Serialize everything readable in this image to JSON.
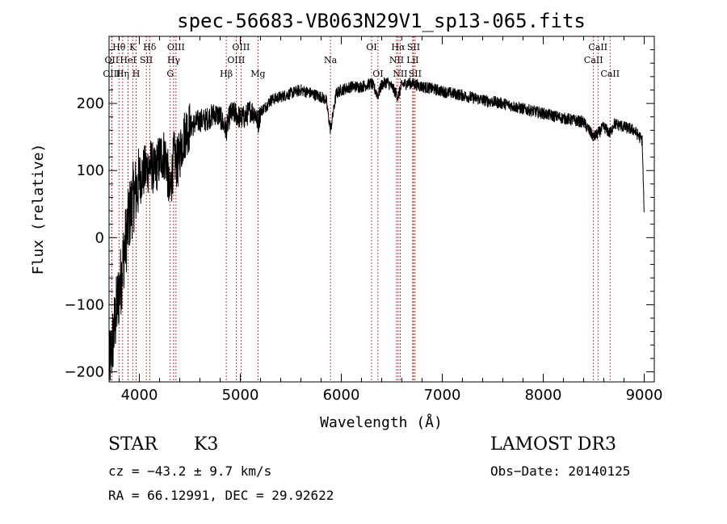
{
  "chart_data": {
    "type": "line",
    "title": "spec-56683-VB063N29V1_sp13-065.fits",
    "xlabel": "Wavelength (Å)",
    "ylabel": "Flux (relative)",
    "xlim": [
      3700,
      9100
    ],
    "ylim": [
      -215,
      300
    ],
    "x_ticks": [
      4000,
      5000,
      6000,
      7000,
      8000,
      9000
    ],
    "y_ticks": [
      -200,
      -100,
      0,
      100,
      200
    ],
    "x_tick_labels": [
      "4000",
      "5000",
      "6000",
      "7000",
      "8000",
      "9000"
    ],
    "y_tick_labels": [
      "−200",
      "−100",
      "0",
      "100",
      "200"
    ],
    "grid": false,
    "series": [
      {
        "name": "flux",
        "x": [
          3700,
          3740,
          3780,
          3820,
          3850,
          3880,
          3910,
          3940,
          3970,
          4000,
          4030,
          4060,
          4090,
          4120,
          4150,
          4180,
          4210,
          4240,
          4270,
          4300,
          4340,
          4380,
          4420,
          4460,
          4500,
          4550,
          4600,
          4650,
          4700,
          4750,
          4800,
          4860,
          4900,
          4950,
          5000,
          5050,
          5100,
          5150,
          5175,
          5200,
          5250,
          5300,
          5400,
          5500,
          5600,
          5700,
          5800,
          5850,
          5893,
          5950,
          6000,
          6100,
          6200,
          6300,
          6363,
          6400,
          6450,
          6500,
          6563,
          6600,
          6650,
          6700,
          6800,
          6900,
          7000,
          7200,
          7400,
          7600,
          7800,
          8000,
          8200,
          8400,
          8498,
          8542,
          8600,
          8662,
          8700,
          8800,
          8900,
          8980,
          9000
        ],
        "values": [
          -200,
          -150,
          -100,
          -60,
          -20,
          10,
          40,
          60,
          70,
          85,
          95,
          100,
          105,
          110,
          95,
          110,
          120,
          125,
          115,
          60,
          120,
          110,
          140,
          160,
          165,
          170,
          175,
          175,
          180,
          185,
          180,
          160,
          185,
          185,
          178,
          180,
          190,
          185,
          170,
          188,
          195,
          205,
          210,
          215,
          220,
          215,
          210,
          205,
          160,
          215,
          220,
          225,
          225,
          230,
          212,
          228,
          232,
          225,
          210,
          228,
          230,
          230,
          225,
          222,
          218,
          212,
          205,
          200,
          192,
          185,
          178,
          172,
          150,
          155,
          165,
          155,
          170,
          165,
          160,
          145,
          30
        ]
      }
    ],
    "lines": [
      {
        "label": "Hθ",
        "x": 3798,
        "row": 1
      },
      {
        "label": "OII",
        "x": 3727,
        "row": 2
      },
      {
        "label": "OIII",
        "x": 3727,
        "row": 3
      },
      {
        "label": "K",
        "x": 3934,
        "row": 1
      },
      {
        "label": "HeI",
        "x": 3889,
        "row": 2
      },
      {
        "label": "Hη",
        "x": 3835,
        "row": 3
      },
      {
        "label": "H",
        "x": 3968,
        "row": 3
      },
      {
        "label": "Hδ",
        "x": 4102,
        "row": 1
      },
      {
        "label": "SII",
        "x": 4069,
        "row": 2
      },
      {
        "label": "OIII",
        "x": 4363,
        "row": 1
      },
      {
        "label": "Hγ",
        "x": 4340,
        "row": 2
      },
      {
        "label": "G",
        "x": 4306,
        "row": 3
      },
      {
        "label": "Hβ",
        "x": 4861,
        "row": 3
      },
      {
        "label": "OIII",
        "x": 5007,
        "row": 1
      },
      {
        "label": "OIII",
        "x": 4959,
        "row": 2
      },
      {
        "label": "Mg",
        "x": 5175,
        "row": 3
      },
      {
        "label": "Na",
        "x": 5893,
        "row": 2
      },
      {
        "label": "OI",
        "x": 6300,
        "row": 1
      },
      {
        "label": "OI",
        "x": 6363,
        "row": 3
      },
      {
        "label": "Hα",
        "x": 6563,
        "row": 1
      },
      {
        "label": "SII",
        "x": 6716,
        "row": 1
      },
      {
        "label": "NII",
        "x": 6548,
        "row": 2
      },
      {
        "label": "LiI",
        "x": 6707,
        "row": 2
      },
      {
        "label": "NII",
        "x": 6583,
        "row": 3
      },
      {
        "label": "SII",
        "x": 6731,
        "row": 3
      },
      {
        "label": "CaII",
        "x": 8542,
        "row": 1
      },
      {
        "label": "CaII",
        "x": 8498,
        "row": 2
      },
      {
        "label": "CaII",
        "x": 8662,
        "row": 3
      }
    ]
  },
  "info": {
    "class": "STAR",
    "subclass": "K3",
    "survey": "LAMOST DR3",
    "cz": "cz = −43.2 ± 9.7 km/s",
    "obs_date": "Obs−Date: 20140125",
    "coords": "RA =  66.12991, DEC =  29.92622"
  }
}
